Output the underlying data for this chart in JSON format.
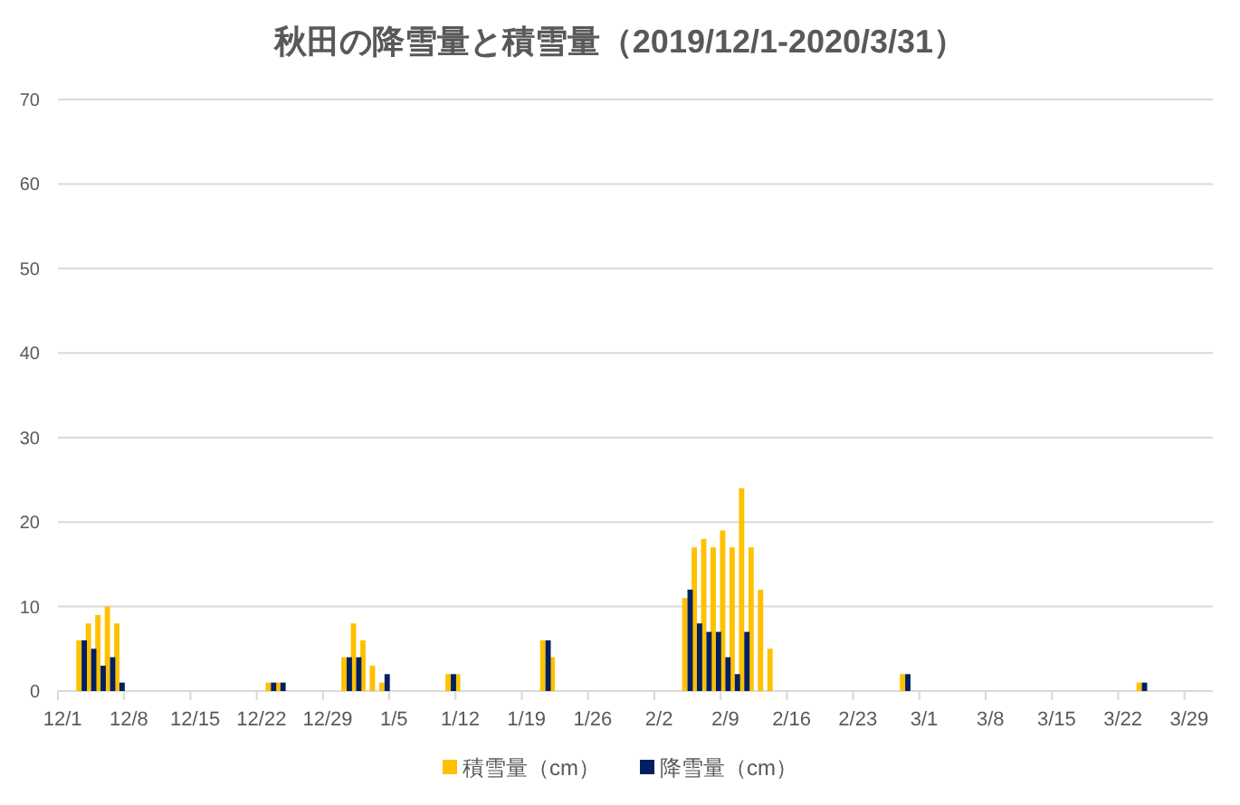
{
  "chart_data": {
    "type": "bar",
    "title": "秋田の降雪量と積雪量（2019/12/1-2020/3/31）",
    "categories": [
      "12/1",
      null,
      null,
      null,
      null,
      null,
      null,
      "12/8",
      null,
      null,
      null,
      null,
      null,
      null,
      "12/15",
      null,
      null,
      null,
      null,
      null,
      null,
      "12/22",
      null,
      null,
      null,
      null,
      null,
      null,
      "12/29",
      null,
      null,
      null,
      null,
      null,
      null,
      "1/5",
      null,
      null,
      null,
      null,
      null,
      null,
      "1/12",
      null,
      null,
      null,
      null,
      null,
      null,
      "1/19",
      null,
      null,
      null,
      null,
      null,
      null,
      "1/26",
      null,
      null,
      null,
      null,
      null,
      null,
      "2/2",
      null,
      null,
      null,
      null,
      null,
      null,
      "2/9",
      null,
      null,
      null,
      null,
      null,
      null,
      "2/16",
      null,
      null,
      null,
      null,
      null,
      null,
      "2/23",
      null,
      null,
      null,
      null,
      null,
      null,
      "3/1",
      null,
      null,
      null,
      null,
      null,
      null,
      "3/8",
      null,
      null,
      null,
      null,
      null,
      null,
      "3/15",
      null,
      null,
      null,
      null,
      null,
      null,
      "3/22",
      null,
      null,
      null,
      null,
      null,
      null,
      "3/29",
      null,
      null
    ],
    "series": [
      {
        "name": "積雪量（cm）",
        "color": "#ffc000",
        "values": [
          0,
          0,
          6,
          8,
          9,
          10,
          8,
          0,
          0,
          0,
          0,
          0,
          0,
          0,
          0,
          0,
          0,
          0,
          0,
          0,
          0,
          0,
          1,
          1,
          0,
          0,
          0,
          0,
          0,
          0,
          4,
          8,
          6,
          3,
          1,
          0,
          0,
          0,
          0,
          0,
          0,
          2,
          2,
          0,
          0,
          0,
          0,
          0,
          0,
          0,
          0,
          6,
          4,
          0,
          0,
          0,
          0,
          0,
          0,
          0,
          0,
          0,
          0,
          0,
          0,
          0,
          11,
          17,
          18,
          17,
          19,
          17,
          24,
          17,
          12,
          5,
          0,
          0,
          0,
          0,
          0,
          0,
          0,
          0,
          0,
          0,
          0,
          0,
          0,
          2,
          0,
          0,
          0,
          0,
          0,
          0,
          0,
          0,
          0,
          0,
          0,
          0,
          0,
          0,
          0,
          0,
          0,
          0,
          0,
          0,
          0,
          0,
          0,
          0,
          1,
          0,
          0,
          0,
          0,
          0,
          0,
          0
        ]
      },
      {
        "name": "降雪量（cm）",
        "color": "#002060",
        "values": [
          0,
          0,
          6,
          5,
          3,
          4,
          1,
          0,
          0,
          0,
          0,
          0,
          0,
          0,
          0,
          0,
          0,
          0,
          0,
          0,
          0,
          0,
          1,
          1,
          0,
          0,
          0,
          0,
          0,
          0,
          4,
          4,
          0,
          0,
          2,
          0,
          0,
          0,
          0,
          0,
          0,
          2,
          0,
          0,
          0,
          0,
          0,
          0,
          0,
          0,
          0,
          6,
          0,
          0,
          0,
          0,
          0,
          0,
          0,
          0,
          0,
          0,
          0,
          0,
          0,
          0,
          12,
          8,
          7,
          7,
          4,
          2,
          7,
          0,
          0,
          0,
          0,
          0,
          0,
          0,
          0,
          0,
          0,
          0,
          0,
          0,
          0,
          0,
          0,
          2,
          0,
          0,
          0,
          0,
          0,
          0,
          0,
          0,
          0,
          0,
          0,
          0,
          0,
          0,
          0,
          0,
          0,
          0,
          0,
          0,
          0,
          0,
          0,
          0,
          1,
          0,
          0,
          0,
          0,
          0,
          0,
          0
        ]
      }
    ],
    "ylim": [
      0,
      70
    ],
    "yticks": [
      0,
      10,
      20,
      30,
      40,
      50,
      60,
      70
    ],
    "grid": "y",
    "legend": "bottom"
  }
}
